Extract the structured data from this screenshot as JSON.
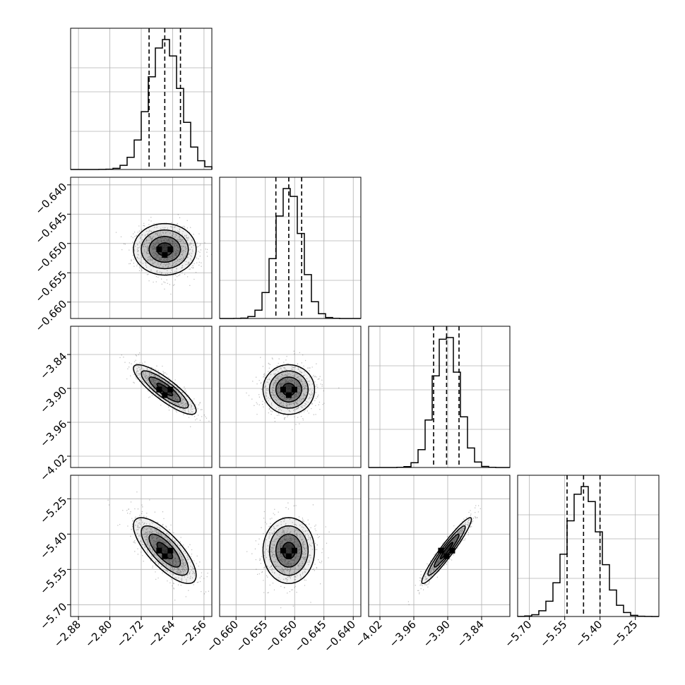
{
  "chart_data": {
    "type": "scatter",
    "subtype": "corner-plot",
    "title": "",
    "grid": true,
    "colors": {
      "line": "#000000",
      "grid": "#b0b0b0",
      "points": "#000000"
    },
    "parameters": [
      {
        "range": [
          -2.9,
          -2.54
        ],
        "ticks": [
          -2.88,
          -2.8,
          -2.72,
          -2.64,
          -2.56
        ],
        "tick_labels": [
          "−2.88",
          "−2.80",
          "−2.72",
          "−2.64",
          "−2.56"
        ],
        "quantiles": [
          -2.7,
          -2.66,
          -2.62
        ],
        "mean": -2.66,
        "sd": 0.04
      },
      {
        "range": [
          -0.6628,
          -0.6387
        ],
        "ticks": [
          -0.66,
          -0.655,
          -0.65,
          -0.645,
          -0.64
        ],
        "tick_labels": [
          "−0.660",
          "−0.655",
          "−0.650",
          "−0.645",
          "−0.640"
        ],
        "quantiles": [
          -0.6532,
          -0.651,
          -0.6488
        ],
        "mean": -0.651,
        "sd": 0.0022
      },
      {
        "range": [
          -4.04,
          -3.79
        ],
        "ticks": [
          -4.02,
          -3.96,
          -3.9,
          -3.84
        ],
        "tick_labels": [
          "−4.02",
          "−3.96",
          "−3.90",
          "−3.84"
        ],
        "quantiles": [
          -3.925,
          -3.902,
          -3.88
        ],
        "mean": -3.902,
        "sd": 0.022
      },
      {
        "range": [
          -5.75,
          -5.15
        ],
        "ticks": [
          -5.7,
          -5.55,
          -5.4,
          -5.25
        ],
        "tick_labels": [
          "−5.70",
          "−5.55",
          "−5.40",
          "−5.25"
        ],
        "quantiles": [
          -5.54,
          -5.47,
          -5.4
        ],
        "mean": -5.47,
        "sd": 0.07
      }
    ],
    "correlations": [
      {
        "i": 0,
        "j": 1,
        "rho": 0.0
      },
      {
        "i": 0,
        "j": 2,
        "rho": -0.85
      },
      {
        "i": 0,
        "j": 3,
        "rho": -0.75
      },
      {
        "i": 1,
        "j": 2,
        "rho": 0.0
      },
      {
        "i": 1,
        "j": 3,
        "rho": 0.0
      },
      {
        "i": 2,
        "j": 3,
        "rho": 0.95
      }
    ],
    "histogram_bins": 20,
    "contour_levels_sigma": [
      0.5,
      1.0,
      1.5,
      2.0
    ]
  }
}
